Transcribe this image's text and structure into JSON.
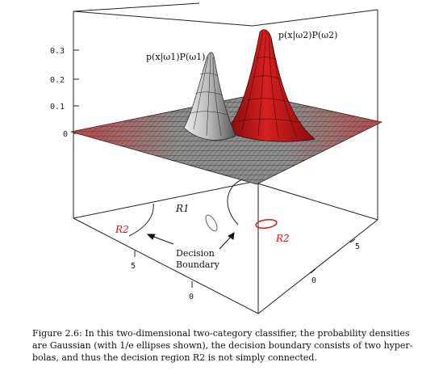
{
  "figure": {
    "z_ticks": [
      "0",
      "0.1",
      "0.2",
      "0.3"
    ],
    "x1_ticks": [
      "0",
      "5"
    ],
    "x2_ticks": [
      "0",
      "5"
    ],
    "density_labels": {
      "omega1": "p(x|ω1)P(ω1)",
      "omega2": "p(x|ω2)P(ω2)"
    },
    "region_labels": {
      "r1": "R1",
      "r2": "R2"
    },
    "annotation": {
      "line1": "Decision",
      "line2": "Boundary"
    },
    "colors": {
      "class1": "#a8a8a8",
      "class2": "#c8141a",
      "region2_text": "#e01010"
    }
  },
  "caption": {
    "lines": [
      "Figure 2.6: In this two-dimensional two-category classifier, the probability densities",
      "are Gaussian (with 1/e ellipses shown), the decision boundary consists of two hyper-",
      "bolas, and thus the decision region R2 is not simply connected."
    ]
  }
}
